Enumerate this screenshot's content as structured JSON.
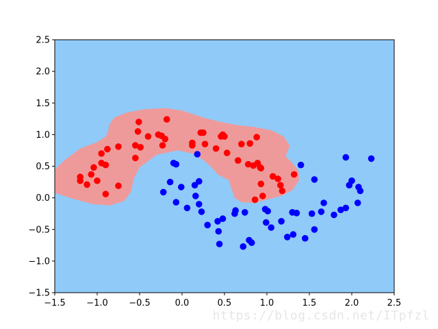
{
  "chart_data": {
    "type": "scatter",
    "title": "",
    "xlabel": "",
    "ylabel": "",
    "xlim": [
      -1.5,
      2.5
    ],
    "ylim": [
      -1.5,
      2.5
    ],
    "grid": false,
    "x_ticks": [
      "-1.5",
      "-1.0",
      "-0.5",
      "0.0",
      "0.5",
      "1.0",
      "1.5",
      "2.0",
      "2.5"
    ],
    "y_ticks": [
      "-1.5",
      "-1.0",
      "-0.5",
      "0.0",
      "0.5",
      "1.0",
      "1.5",
      "2.0",
      "2.5"
    ],
    "background_region_color": "#90caf9",
    "decision_region": {
      "color": "#ef9a9a",
      "boundary": [
        [
          -1.5,
          0.45
        ],
        [
          -1.38,
          0.6
        ],
        [
          -1.2,
          0.78
        ],
        [
          -1.0,
          0.88
        ],
        [
          -0.9,
          0.97
        ],
        [
          -0.87,
          1.05
        ],
        [
          -0.86,
          1.15
        ],
        [
          -0.8,
          1.27
        ],
        [
          -0.65,
          1.35
        ],
        [
          -0.45,
          1.4
        ],
        [
          -0.2,
          1.42
        ],
        [
          0.0,
          1.38
        ],
        [
          0.25,
          1.27
        ],
        [
          0.45,
          1.2
        ],
        [
          0.65,
          1.15
        ],
        [
          0.85,
          1.12
        ],
        [
          1.05,
          1.07
        ],
        [
          1.2,
          0.97
        ],
        [
          1.27,
          0.82
        ],
        [
          1.22,
          0.66
        ],
        [
          1.3,
          0.55
        ],
        [
          1.37,
          0.43
        ],
        [
          1.38,
          0.28
        ],
        [
          1.3,
          0.12
        ],
        [
          1.17,
          0.03
        ],
        [
          1.0,
          -0.03
        ],
        [
          0.85,
          -0.08
        ],
        [
          0.7,
          -0.07
        ],
        [
          0.62,
          0.0
        ],
        [
          0.58,
          0.15
        ],
        [
          0.55,
          0.28
        ],
        [
          0.42,
          0.37
        ],
        [
          0.35,
          0.48
        ],
        [
          0.25,
          0.6
        ],
        [
          0.12,
          0.7
        ],
        [
          -0.05,
          0.75
        ],
        [
          -0.3,
          0.68
        ],
        [
          -0.5,
          0.48
        ],
        [
          -0.57,
          0.3
        ],
        [
          -0.6,
          0.1
        ],
        [
          -0.68,
          -0.05
        ],
        [
          -0.85,
          -0.12
        ],
        [
          -1.05,
          -0.1
        ],
        [
          -1.3,
          -0.01
        ],
        [
          -1.5,
          0.08
        ]
      ]
    },
    "series": [
      {
        "color": "#ff0000",
        "points": [
          [
            -1.2,
            0.33
          ],
          [
            -1.2,
            0.27
          ],
          [
            -1.12,
            0.21
          ],
          [
            -1.07,
            0.37
          ],
          [
            -1.04,
            0.48
          ],
          [
            -1.0,
            0.27
          ],
          [
            -0.95,
            0.55
          ],
          [
            -0.95,
            0.7
          ],
          [
            -0.9,
            0.52
          ],
          [
            -0.88,
            0.77
          ],
          [
            -0.9,
            0.06
          ],
          [
            -0.75,
            0.81
          ],
          [
            -0.75,
            0.19
          ],
          [
            -0.55,
            0.83
          ],
          [
            -0.55,
            0.63
          ],
          [
            -0.52,
            1.05
          ],
          [
            -0.51,
            1.2
          ],
          [
            -0.49,
            0.8
          ],
          [
            -0.4,
            0.97
          ],
          [
            -0.28,
            1.0
          ],
          [
            -0.24,
            0.98
          ],
          [
            -0.23,
            0.83
          ],
          [
            -0.2,
            0.93
          ],
          [
            -0.18,
            1.24
          ],
          [
            0.12,
            0.87
          ],
          [
            0.12,
            0.83
          ],
          [
            0.22,
            1.03
          ],
          [
            0.25,
            1.03
          ],
          [
            0.27,
            0.85
          ],
          [
            0.4,
            0.78
          ],
          [
            0.46,
            0.97
          ],
          [
            0.48,
            1.0
          ],
          [
            0.5,
            0.97
          ],
          [
            0.53,
            0.71
          ],
          [
            0.66,
            0.59
          ],
          [
            0.7,
            0.85
          ],
          [
            0.78,
            0.53
          ],
          [
            0.8,
            0.86
          ],
          [
            0.84,
            0.51
          ],
          [
            0.86,
            -0.03
          ],
          [
            0.88,
            0.96
          ],
          [
            0.89,
            0.55
          ],
          [
            0.92,
            0.48
          ],
          [
            0.93,
            0.47
          ],
          [
            0.95,
            0.03
          ],
          [
            0.93,
            0.22
          ],
          [
            1.07,
            0.34
          ],
          [
            1.13,
            0.3
          ],
          [
            1.16,
            0.2
          ],
          [
            1.18,
            0.11
          ],
          [
            1.32,
            0.37
          ]
        ]
      },
      {
        "color": "#0000ff",
        "points": [
          [
            -0.22,
            0.09
          ],
          [
            -0.14,
            0.25
          ],
          [
            -0.1,
            0.55
          ],
          [
            -0.07,
            0.53
          ],
          [
            -0.07,
            -0.07
          ],
          [
            -0.01,
            0.17
          ],
          [
            0.06,
            -0.16
          ],
          [
            0.15,
            0.2
          ],
          [
            0.16,
            0.03
          ],
          [
            0.18,
            0.69
          ],
          [
            0.2,
            0.26
          ],
          [
            0.2,
            -0.1
          ],
          [
            0.23,
            -0.22
          ],
          [
            0.3,
            -0.43
          ],
          [
            0.42,
            -0.37
          ],
          [
            0.43,
            -0.53
          ],
          [
            0.44,
            -0.73
          ],
          [
            0.48,
            -0.33
          ],
          [
            0.62,
            -0.25
          ],
          [
            0.63,
            -0.2
          ],
          [
            0.72,
            -0.77
          ],
          [
            0.74,
            -0.23
          ],
          [
            0.79,
            -0.67
          ],
          [
            0.82,
            -0.71
          ],
          [
            0.98,
            -0.18
          ],
          [
            0.99,
            -0.39
          ],
          [
            1.01,
            -0.21
          ],
          [
            1.05,
            -0.47
          ],
          [
            1.17,
            -0.37
          ],
          [
            1.24,
            -0.62
          ],
          [
            1.3,
            -0.23
          ],
          [
            1.31,
            -0.58
          ],
          [
            1.35,
            -0.24
          ],
          [
            1.4,
            0.52
          ],
          [
            1.45,
            -0.64
          ],
          [
            1.53,
            -0.25
          ],
          [
            1.56,
            0.29
          ],
          [
            1.56,
            -0.5
          ],
          [
            1.64,
            -0.22
          ],
          [
            1.67,
            -0.08
          ],
          [
            1.79,
            -0.27
          ],
          [
            1.87,
            -0.19
          ],
          [
            1.93,
            0.64
          ],
          [
            1.93,
            -0.16
          ],
          [
            1.97,
            0.2
          ],
          [
            2.0,
            0.27
          ],
          [
            2.07,
            -0.08
          ],
          [
            2.08,
            0.17
          ],
          [
            2.1,
            0.11
          ],
          [
            2.23,
            0.62
          ]
        ]
      }
    ]
  },
  "watermark": "https://blog.csdn.net/ITpfzl"
}
